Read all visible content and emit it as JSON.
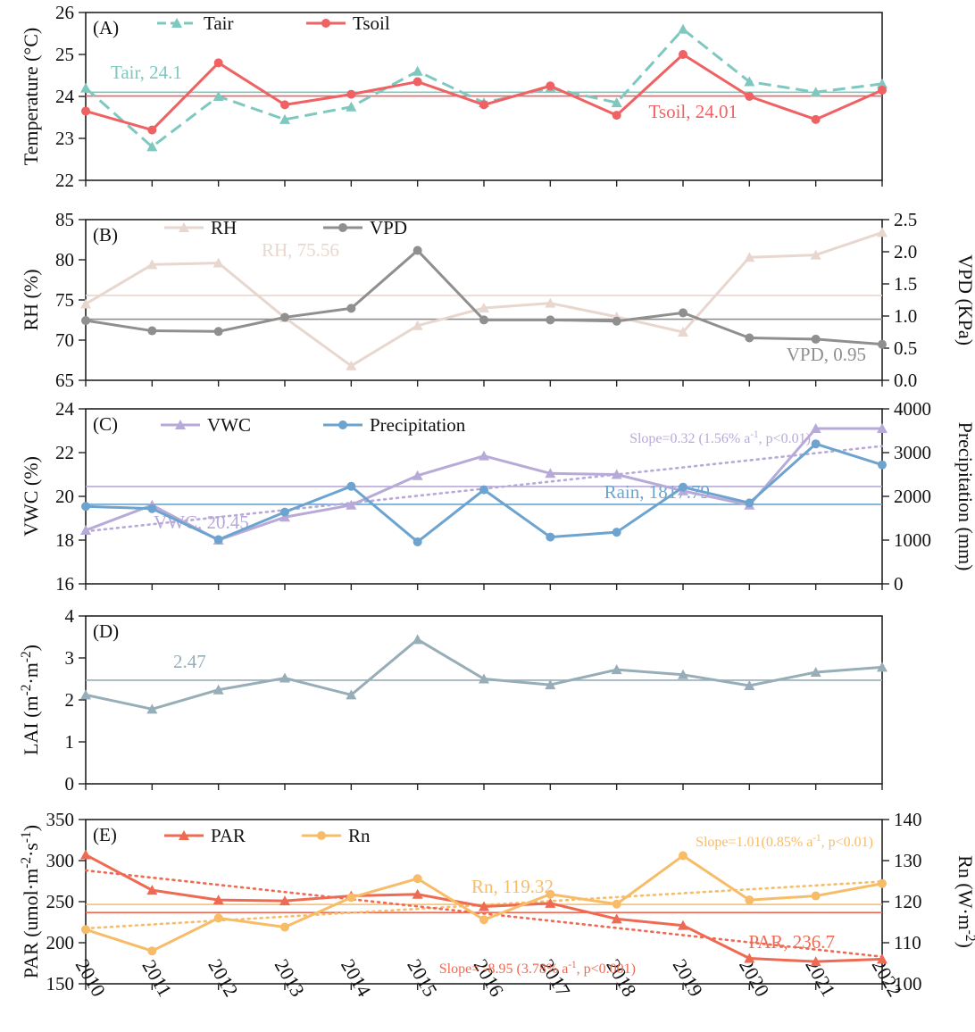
{
  "chart_data": [
    {
      "panel": "(A)",
      "type": "line",
      "x": [
        2010,
        2011,
        2012,
        2013,
        2014,
        2015,
        2016,
        2017,
        2018,
        2019,
        2020,
        2021,
        2022
      ],
      "ylabel": "Temperature (°C)",
      "ylim": [
        22,
        26
      ],
      "yticks": [
        22,
        23,
        24,
        25,
        26
      ],
      "series": [
        {
          "name": "Tair",
          "axis": "left",
          "marker": "triangle",
          "dashed": true,
          "color": "#7ec8c0",
          "values": [
            24.2,
            22.8,
            24.0,
            23.45,
            23.75,
            24.6,
            23.85,
            24.2,
            23.85,
            25.6,
            24.35,
            24.1,
            24.3
          ]
        },
        {
          "name": "Tsoil",
          "axis": "left",
          "marker": "circle",
          "dashed": false,
          "color": "#ef6163",
          "values": [
            23.65,
            23.2,
            24.8,
            23.8,
            24.05,
            24.35,
            23.8,
            24.25,
            23.55,
            25.0,
            24.0,
            23.45,
            24.15
          ]
        }
      ],
      "means": [
        {
          "label": "Tair, 24.1",
          "value": 24.1,
          "axis": "left",
          "color": "#7ec8c0"
        },
        {
          "label": "Tsoil, 24.01",
          "value": 24.01,
          "axis": "left",
          "color": "#ef6163"
        }
      ],
      "legend": [
        "Tair",
        "Tsoil"
      ]
    },
    {
      "panel": "(B)",
      "type": "line",
      "x": [
        2010,
        2011,
        2012,
        2013,
        2014,
        2015,
        2016,
        2017,
        2018,
        2019,
        2020,
        2021,
        2022
      ],
      "ylabel": "RH (%)",
      "ylim": [
        65,
        85
      ],
      "yticks": [
        65,
        70,
        75,
        80,
        85
      ],
      "y2label": "VPD (KPa)",
      "y2lim": [
        0,
        2.5
      ],
      "y2ticks": [
        0.0,
        0.5,
        1.0,
        1.5,
        2.0,
        2.5
      ],
      "series": [
        {
          "name": "RH",
          "axis": "left",
          "marker": "triangle",
          "dashed": false,
          "color": "#e8d7cf",
          "values": [
            74.5,
            79.4,
            79.6,
            72.8,
            66.8,
            71.8,
            74.0,
            74.6,
            72.9,
            71.0,
            80.3,
            80.6,
            83.4
          ]
        },
        {
          "name": "VPD",
          "axis": "right",
          "marker": "circle",
          "dashed": false,
          "color": "#8f8f8f",
          "values": [
            0.93,
            0.77,
            0.76,
            0.98,
            1.12,
            2.02,
            0.94,
            0.94,
            0.92,
            1.05,
            0.66,
            0.64,
            0.56
          ]
        }
      ],
      "means": [
        {
          "label": "RH, 75.56",
          "value": 75.56,
          "axis": "left",
          "color": "#e8d7cf"
        },
        {
          "label": "VPD, 0.95",
          "value": 0.95,
          "axis": "right",
          "color": "#8f8f8f"
        }
      ],
      "legend": [
        "RH",
        "VPD"
      ]
    },
    {
      "panel": "(C)",
      "type": "line",
      "x": [
        2010,
        2011,
        2012,
        2013,
        2014,
        2015,
        2016,
        2017,
        2018,
        2019,
        2020,
        2021,
        2022
      ],
      "ylabel": "VWC (%)",
      "ylim": [
        16,
        24
      ],
      "yticks": [
        16,
        18,
        20,
        22,
        24
      ],
      "y2label": "Precipitation (mm)",
      "y2lim": [
        0,
        4000
      ],
      "y2ticks": [
        0,
        1000,
        2000,
        3000,
        4000
      ],
      "series": [
        {
          "name": "VWC",
          "axis": "left",
          "marker": "triangle",
          "dashed": false,
          "color": "#b8aad8",
          "values": [
            18.45,
            19.6,
            18.0,
            19.05,
            19.6,
            20.95,
            21.85,
            21.05,
            21.0,
            20.25,
            19.6,
            23.1,
            23.1
          ]
        },
        {
          "name": "Precipitation",
          "axis": "right",
          "marker": "circle",
          "dashed": false,
          "color": "#6da4cf",
          "values": [
            1770,
            1720,
            1010,
            1640,
            2230,
            960,
            2150,
            1070,
            1180,
            2210,
            1850,
            3200,
            2720
          ]
        }
      ],
      "means": [
        {
          "label": "VWC, 20.45",
          "value": 20.45,
          "axis": "left",
          "color": "#b8aad8"
        },
        {
          "label": "Rain, 1817.79",
          "value": 1817.79,
          "axis": "right",
          "color": "#6da4cf"
        }
      ],
      "trends": [
        {
          "label": "Slope=0.32 (1.56% a-1, p<0.01)",
          "axis": "left",
          "color": "#b8aad8",
          "start": 18.4,
          "end": 22.3
        }
      ],
      "legend": [
        "VWC",
        "Precipitation"
      ]
    },
    {
      "panel": "(D)",
      "type": "line",
      "x": [
        2010,
        2011,
        2012,
        2013,
        2014,
        2015,
        2016,
        2017,
        2018,
        2019,
        2020,
        2021,
        2022
      ],
      "ylabel": "LAI (m-2·m-2)",
      "ylim": [
        0,
        4
      ],
      "yticks": [
        0,
        1,
        2,
        3,
        4
      ],
      "series": [
        {
          "name": "LAI",
          "axis": "left",
          "marker": "triangle",
          "dashed": false,
          "color": "#97adb8",
          "values": [
            2.12,
            1.78,
            2.24,
            2.52,
            2.12,
            3.44,
            2.5,
            2.36,
            2.72,
            2.6,
            2.34,
            2.66,
            2.78
          ]
        }
      ],
      "means": [
        {
          "label": "2.47",
          "value": 2.47,
          "axis": "left",
          "color": "#97adb8"
        }
      ],
      "legend": []
    },
    {
      "panel": "(E)",
      "type": "line",
      "x": [
        2010,
        2011,
        2012,
        2013,
        2014,
        2015,
        2016,
        2017,
        2018,
        2019,
        2020,
        2021,
        2022
      ],
      "xticks": [
        "2010",
        "2011",
        "2012",
        "2013",
        "2014",
        "2015",
        "2016",
        "2017",
        "2018",
        "2019",
        "2020",
        "2021",
        "2022"
      ],
      "ylabel": "PAR (umol·m-2·s-1)",
      "ylim": [
        150,
        350
      ],
      "yticks": [
        150,
        200,
        250,
        300,
        350
      ],
      "y2label": "Rn (W·m-2)",
      "y2lim": [
        100,
        140
      ],
      "y2ticks": [
        100,
        110,
        120,
        130,
        140
      ],
      "series": [
        {
          "name": "PAR",
          "axis": "left",
          "marker": "triangle",
          "dashed": false,
          "color": "#ef6a52",
          "values": [
            307,
            264,
            252,
            251,
            257,
            259,
            244,
            248,
            229,
            221,
            181,
            177,
            180
          ]
        },
        {
          "name": "Rn",
          "axis": "right",
          "marker": "circle",
          "dashed": false,
          "color": "#f7bc68",
          "values": [
            113.2,
            108.0,
            116.0,
            113.8,
            121.0,
            125.6,
            115.6,
            121.8,
            119.4,
            131.2,
            120.4,
            121.4,
            124.4
          ]
        }
      ],
      "means": [
        {
          "label": "Rn, 119.32",
          "value": 119.32,
          "axis": "right",
          "color": "#f7bc68"
        },
        {
          "label": "PAR, 236.7",
          "value": 236.7,
          "axis": "left",
          "color": "#ef6a52"
        }
      ],
      "trends": [
        {
          "label": "Slope=1.01(0.85% a-1, p<0.01)",
          "axis": "right",
          "color": "#f7bc68",
          "start": 113.5,
          "end": 124.9
        },
        {
          "label": "Slope= -8.95 (3.78% a-1, p<0.001)",
          "axis": "left",
          "color": "#ef6a52",
          "start": 288,
          "end": 183
        }
      ],
      "legend": [
        "PAR",
        "Rn"
      ]
    }
  ]
}
